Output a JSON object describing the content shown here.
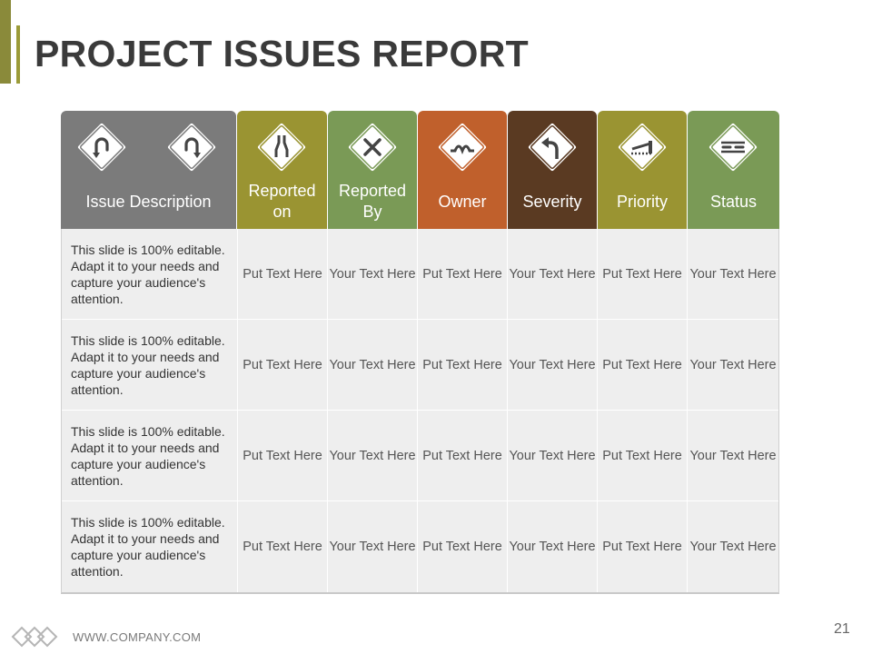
{
  "title": "PROJECT ISSUES REPORT",
  "columns": [
    {
      "label": "Issue Description",
      "color": "#7b7b7b",
      "icons": [
        "u-turn-left-sign-icon",
        "u-turn-right-sign-icon"
      ]
    },
    {
      "label": "Reported on",
      "color": "#9a9432",
      "icons": [
        "road-narrows-sign-icon"
      ]
    },
    {
      "label": "Reported By",
      "color": "#7a9a56",
      "icons": [
        "crossroads-x-sign-icon"
      ]
    },
    {
      "label": "Owner",
      "color": "#c0602c",
      "icons": [
        "speed-bump-sign-icon"
      ]
    },
    {
      "label": "Severity",
      "color": "#5a3a22",
      "icons": [
        "left-curve-arrow-sign-icon"
      ]
    },
    {
      "label": "Priority",
      "color": "#9a9432",
      "icons": [
        "railroad-barrier-sign-icon"
      ]
    },
    {
      "label": "Status",
      "color": "#7a9a56",
      "icons": [
        "divided-road-sign-icon"
      ]
    }
  ],
  "rows": [
    [
      "This slide is 100% editable. Adapt it to your needs and capture your audience's attention.",
      "Put Text Here",
      "Your Text Here",
      "Put Text Here",
      "Your Text Here",
      "Put Text Here",
      "Your Text Here"
    ],
    [
      "This slide is 100% editable. Adapt it to your needs and capture your audience's attention.",
      "Put Text Here",
      "Your Text Here",
      "Put Text Here",
      "Your Text Here",
      "Put Text Here",
      "Your Text Here"
    ],
    [
      "This slide is 100% editable. Adapt it to your needs and capture your audience's attention.",
      "Put Text Here",
      "Your Text Here",
      "Put Text Here",
      "Your Text Here",
      "Put Text Here",
      "Your Text Here"
    ],
    [
      "This slide is 100% editable. Adapt it to your needs and capture your audience's attention.",
      "Put Text Here",
      "Your Text Here",
      "Put Text Here",
      "Your Text Here",
      "Put Text Here",
      "Your Text Here"
    ]
  ],
  "footer": {
    "url": "WWW.COMPANY.COM",
    "page_number": "21",
    "logo_icon": "linked-diamonds-logo-icon"
  }
}
